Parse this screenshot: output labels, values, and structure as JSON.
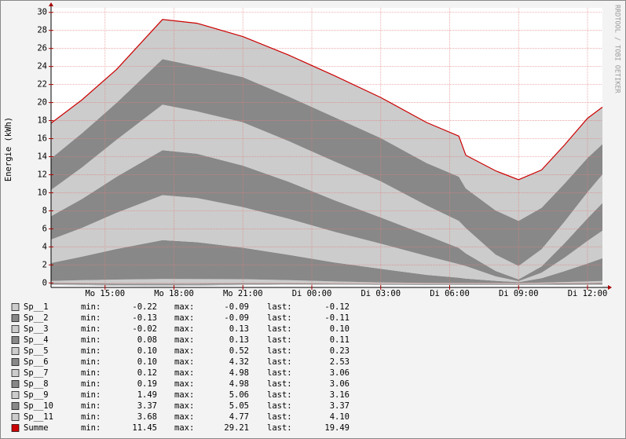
{
  "chart_data": {
    "type": "area",
    "ylabel": "Energie (kWh)",
    "watermark": "RRDTOOL / TOBI OETIKER",
    "xlim": [
      12.65,
      36.65
    ],
    "xticks": [
      {
        "value": 15,
        "label": "Mo 15:00"
      },
      {
        "value": 18,
        "label": "Mo 18:00"
      },
      {
        "value": 21,
        "label": "Mo 21:00"
      },
      {
        "value": 24,
        "label": "Di 00:00"
      },
      {
        "value": 27,
        "label": "Di 03:00"
      },
      {
        "value": 30,
        "label": "Di 06:00"
      },
      {
        "value": 33,
        "label": "Di 09:00"
      },
      {
        "value": 36,
        "label": "Di 12:00"
      }
    ],
    "ylim": [
      -0.5,
      30.5
    ],
    "yticks": [
      0,
      2,
      4,
      6,
      8,
      10,
      12,
      14,
      16,
      18,
      20,
      22,
      24,
      26,
      28,
      30
    ],
    "grid": true,
    "stat_labels": [
      "min:",
      "max:",
      "last:"
    ],
    "x": [
      12.65,
      14,
      15.5,
      17.5,
      19,
      21,
      23,
      25,
      27,
      29,
      30.4,
      30.7,
      32,
      33,
      34,
      35,
      36,
      36.65
    ],
    "series": [
      {
        "name": "Sp__1",
        "style": "area",
        "color": "#cccccc",
        "values": [
          -0.12,
          -0.15,
          -0.2,
          -0.22,
          -0.2,
          -0.15,
          -0.1,
          -0.09,
          -0.09,
          -0.1,
          -0.1,
          -0.1,
          -0.1,
          -0.1,
          -0.1,
          -0.11,
          -0.12,
          -0.12
        ],
        "stats": {
          "min": "-0.22",
          "max": "-0.09",
          "last": "-0.12"
        }
      },
      {
        "name": "Sp__2",
        "style": "area",
        "color": "#888888",
        "values": [
          -0.11,
          -0.12,
          -0.13,
          -0.13,
          -0.12,
          -0.1,
          -0.09,
          -0.09,
          -0.09,
          -0.09,
          -0.1,
          -0.1,
          -0.1,
          -0.1,
          -0.1,
          -0.1,
          -0.11,
          -0.11
        ],
        "stats": {
          "min": "-0.13",
          "max": "-0.09",
          "last": "-0.11"
        }
      },
      {
        "name": "Sp__3",
        "style": "area",
        "color": "#cccccc",
        "values": [
          0.1,
          0.11,
          0.12,
          0.13,
          0.12,
          0.1,
          0.05,
          0,
          -0.02,
          -0.02,
          0,
          0,
          0,
          0,
          0.02,
          0.05,
          0.08,
          0.1
        ],
        "stats": {
          "min": "-0.02",
          "max": "0.13",
          "last": "0.10"
        }
      },
      {
        "name": "Sp__4",
        "style": "area",
        "color": "#888888",
        "values": [
          0.11,
          0.12,
          0.13,
          0.13,
          0.12,
          0.11,
          0.1,
          0.09,
          0.08,
          0.08,
          0.08,
          0.08,
          0.08,
          0.08,
          0.09,
          0.1,
          0.11,
          0.11
        ],
        "stats": {
          "min": "0.08",
          "max": "0.13",
          "last": "0.11"
        }
      },
      {
        "name": "Sp__5",
        "style": "area",
        "color": "#cccccc",
        "values": [
          0.23,
          0.35,
          0.45,
          0.52,
          0.5,
          0.45,
          0.35,
          0.25,
          0.18,
          0.12,
          0.1,
          0.1,
          0.1,
          0.1,
          0.12,
          0.16,
          0.2,
          0.23
        ],
        "stats": {
          "min": "0.10",
          "max": "0.52",
          "last": "0.23"
        }
      },
      {
        "name": "Sp__6",
        "style": "area",
        "color": "#888888",
        "values": [
          2.0,
          2.6,
          3.4,
          4.32,
          4.1,
          3.5,
          2.8,
          2.1,
          1.5,
          0.9,
          0.6,
          0.5,
          0.25,
          0.1,
          0.5,
          1.2,
          2.0,
          2.53
        ],
        "stats": {
          "min": "0.10",
          "max": "4.32",
          "last": "2.53"
        }
      },
      {
        "name": "Sp__7",
        "style": "area",
        "color": "#cccccc",
        "values": [
          2.6,
          3.2,
          4.0,
          4.98,
          4.9,
          4.5,
          4.0,
          3.4,
          2.8,
          2.1,
          1.5,
          1.4,
          0.5,
          0.12,
          0.6,
          1.5,
          2.5,
          3.06
        ],
        "stats": {
          "min": "0.12",
          "max": "4.98",
          "last": "3.06"
        }
      },
      {
        "name": "Sp__8",
        "style": "area",
        "color": "#888888",
        "values": [
          2.6,
          3.2,
          4.0,
          4.98,
          4.9,
          4.6,
          4.1,
          3.5,
          2.9,
          2.3,
          1.8,
          1.4,
          0.6,
          0.19,
          0.7,
          1.6,
          2.5,
          3.06
        ],
        "stats": {
          "min": "0.19",
          "max": "4.98",
          "last": "3.06"
        }
      },
      {
        "name": "Sp__9",
        "style": "area",
        "color": "#cccccc",
        "values": [
          2.9,
          3.5,
          4.1,
          5.06,
          4.7,
          4.8,
          4.5,
          4.3,
          4.0,
          3.3,
          3.0,
          2.8,
          1.8,
          1.49,
          1.9,
          2.4,
          2.9,
          3.16
        ],
        "stats": {
          "min": "1.49",
          "max": "5.06",
          "last": "3.16"
        }
      },
      {
        "name": "Sp__10",
        "style": "area",
        "color": "#888888",
        "values": [
          3.5,
          3.8,
          4.1,
          5.05,
          5.0,
          5.0,
          4.95,
          4.9,
          4.8,
          4.7,
          4.9,
          4.4,
          4.9,
          5.0,
          4.6,
          4.2,
          3.8,
          3.37
        ],
        "stats": {
          "min": "3.37",
          "max": "5.05",
          "last": "3.37"
        }
      },
      {
        "name": "Sp__11",
        "style": "area",
        "color": "#cccccc",
        "values": [
          3.9,
          3.7,
          3.7,
          4.39,
          4.77,
          4.5,
          4.6,
          4.6,
          4.5,
          4.5,
          4.5,
          3.68,
          4.4,
          4.57,
          4.2,
          4.3,
          4.4,
          4.1
        ],
        "stats": {
          "min": "3.68",
          "max": "4.77",
          "last": "4.10"
        }
      },
      {
        "name": "Summe",
        "style": "line",
        "color": "#cc0000",
        "values": [
          17.71,
          20.31,
          23.67,
          29.21,
          28.79,
          27.31,
          25.26,
          22.96,
          20.56,
          17.79,
          16.28,
          14.16,
          12.43,
          11.45,
          12.53,
          15.3,
          18.26,
          19.49
        ],
        "stats": {
          "min": "11.45",
          "max": "29.21",
          "last": "19.49"
        }
      }
    ]
  }
}
